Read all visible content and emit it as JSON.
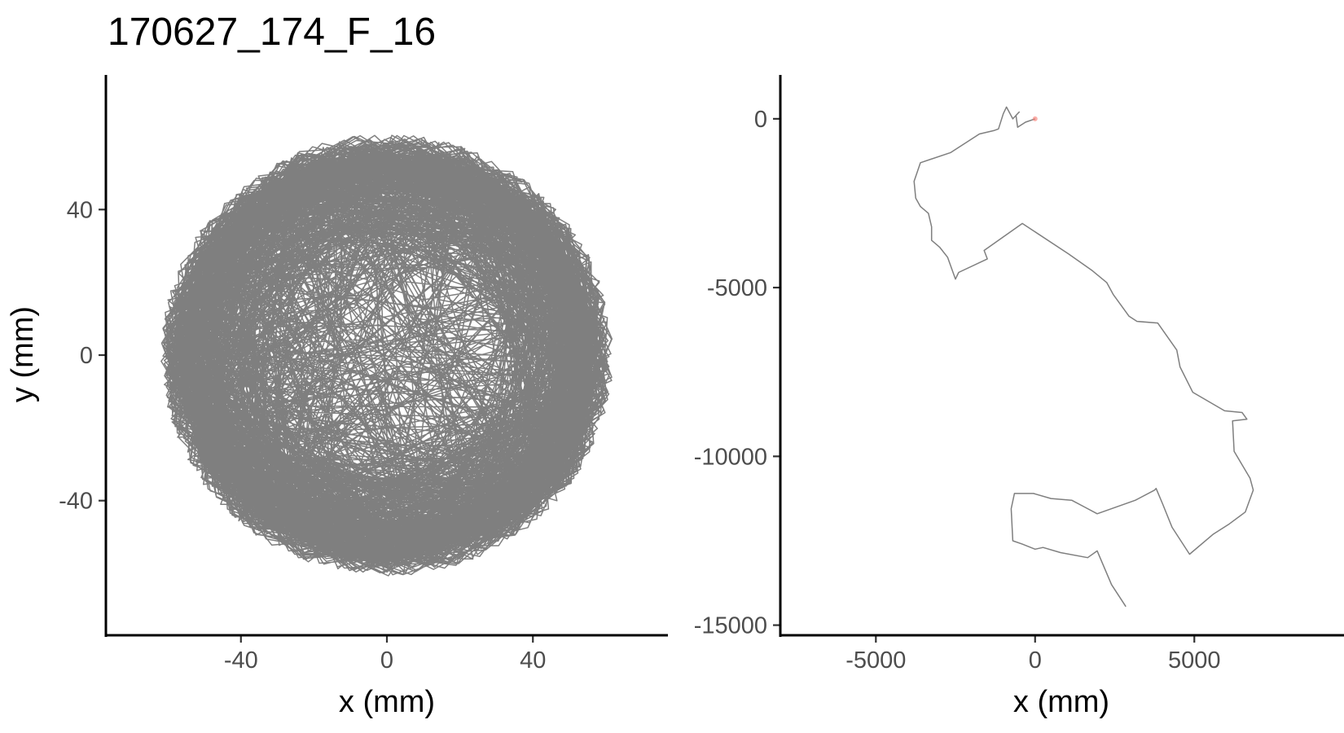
{
  "title": "170627_174_F_16",
  "colors": {
    "path": "#7f7f7f",
    "start_marker": "#f8766d",
    "axis": "#000000",
    "tick_label": "#4d4d4d"
  },
  "chart_data": [
    {
      "type": "line",
      "subtype": "trajectory",
      "xlabel": "x (mm)",
      "ylabel": "y (mm)",
      "xlim": [
        -77,
        77
      ],
      "ylim": [
        -77,
        77
      ],
      "xticks": [
        -40,
        0,
        40
      ],
      "xtick_labels": [
        "-40",
        "0",
        "40"
      ],
      "yticks": [
        -40,
        0,
        40
      ],
      "ytick_labels": [
        "-40",
        "0",
        "40"
      ],
      "grid": false,
      "series": [
        {
          "x_center": 0,
          "y_center": 0,
          "radius_max": 62
        }
      ]
    },
    {
      "type": "line",
      "subtype": "trajectory",
      "xlabel": "x (mm)",
      "ylabel": "",
      "xlim": [
        -8000,
        9700
      ],
      "ylim": [
        -15300,
        1300
      ],
      "xticks": [
        -5000,
        0,
        5000
      ],
      "xtick_labels": [
        "-5000",
        "0",
        "5000"
      ],
      "yticks": [
        0,
        -5000,
        -10000,
        -15000
      ],
      "ytick_labels": [
        "0",
        "-5000",
        "-10000",
        "-15000"
      ],
      "grid": false,
      "series": [
        {
          "start": [
            0,
            0
          ],
          "x": [
            0,
            -300,
            -550,
            -600,
            -500,
            -700,
            -900,
            -1000,
            -1150,
            -1300,
            -1750,
            -2650,
            -3600,
            -3800,
            -3750,
            -3600,
            -3350,
            -3250,
            -3250,
            -3000,
            -2750,
            -2500,
            -2400,
            -1500,
            -1600,
            -400,
            1050,
            1800,
            2250,
            2450,
            2950,
            3200,
            3850,
            4450,
            4550,
            4950,
            5950,
            6500,
            6650,
            6200,
            6250,
            6750,
            6850,
            6600,
            6100,
            5600,
            4850,
            4300,
            4000,
            3800,
            3750,
            3150,
            2700,
            1950,
            1550,
            1150,
            500,
            -50,
            -650,
            -750,
            -700,
            -400,
            0,
            250,
            800,
            1650,
            1950,
            2400,
            2850
          ],
          "y": [
            0,
            -100,
            -250,
            100,
            200,
            0,
            350,
            150,
            -300,
            -350,
            -450,
            -1000,
            -1300,
            -1850,
            -2350,
            -2600,
            -2800,
            -3200,
            -3600,
            -3800,
            -4100,
            -4750,
            -4550,
            -4150,
            -3900,
            -3100,
            -4000,
            -4500,
            -4850,
            -5200,
            -5850,
            -6000,
            -6050,
            -6850,
            -7350,
            -8100,
            -8650,
            -8700,
            -8900,
            -8950,
            -9850,
            -10650,
            -11000,
            -11650,
            -12000,
            -12300,
            -12900,
            -12100,
            -11400,
            -10950,
            -11000,
            -11300,
            -11450,
            -11700,
            -11500,
            -11300,
            -11250,
            -11100,
            -11100,
            -11550,
            -12500,
            -12600,
            -12750,
            -12700,
            -12850,
            -13000,
            -12800,
            -13800,
            -14450
          ]
        }
      ]
    }
  ]
}
